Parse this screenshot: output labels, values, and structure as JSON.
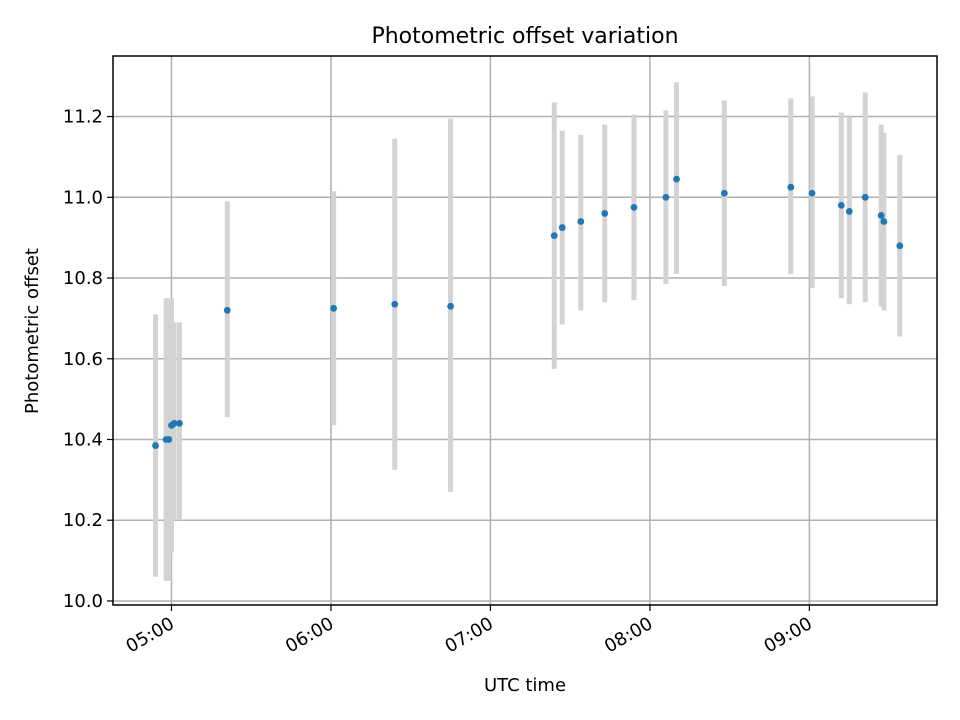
{
  "chart_data": {
    "type": "scatter",
    "title": "Photometric offset variation",
    "xlabel": "UTC time",
    "ylabel": "Photometric offset",
    "grid": true,
    "x_tick_labels": [
      "05:00",
      "06:00",
      "07:00",
      "08:00",
      "09:00"
    ],
    "x_ticks": [
      "05:00",
      "06:00",
      "07:00",
      "08:00",
      "09:00"
    ],
    "y_ticks": [
      10.0,
      10.2,
      10.4,
      10.6,
      10.8,
      11.0,
      11.2
    ],
    "y_tick_labels": [
      "10.0",
      "10.2",
      "10.4",
      "10.6",
      "10.8",
      "11.0",
      "11.2"
    ],
    "xlim": [
      "04:38",
      "09:48"
    ],
    "ylim": [
      9.99,
      11.35
    ],
    "marker_color": "#1f77b4",
    "errorbar_color": "#d3d3d3",
    "points": [
      {
        "x": "04:54",
        "y": 10.385,
        "err_low": 10.06,
        "err_high": 10.71
      },
      {
        "x": "04:58",
        "y": 10.4,
        "err_low": 10.05,
        "err_high": 10.75
      },
      {
        "x": "04:59",
        "y": 10.4,
        "err_low": 10.05,
        "err_high": 10.75
      },
      {
        "x": "05:00",
        "y": 10.435,
        "err_low": 10.12,
        "err_high": 10.75
      },
      {
        "x": "05:01",
        "y": 10.44,
        "err_low": 10.2,
        "err_high": 10.69
      },
      {
        "x": "05:03",
        "y": 10.44,
        "err_low": 10.2,
        "err_high": 10.69
      },
      {
        "x": "05:21",
        "y": 10.72,
        "err_low": 10.455,
        "err_high": 10.99
      },
      {
        "x": "06:01",
        "y": 10.725,
        "err_low": 10.435,
        "err_high": 11.015
      },
      {
        "x": "06:24",
        "y": 10.735,
        "err_low": 10.325,
        "err_high": 11.145
      },
      {
        "x": "06:45",
        "y": 10.73,
        "err_low": 10.27,
        "err_high": 11.195
      },
      {
        "x": "07:24",
        "y": 10.905,
        "err_low": 10.575,
        "err_high": 11.235
      },
      {
        "x": "07:27",
        "y": 10.925,
        "err_low": 10.685,
        "err_high": 11.165
      },
      {
        "x": "07:34",
        "y": 10.94,
        "err_low": 10.72,
        "err_high": 11.155
      },
      {
        "x": "07:43",
        "y": 10.96,
        "err_low": 10.74,
        "err_high": 11.18
      },
      {
        "x": "07:54",
        "y": 10.975,
        "err_low": 10.745,
        "err_high": 11.205
      },
      {
        "x": "08:06",
        "y": 11.0,
        "err_low": 10.785,
        "err_high": 11.215
      },
      {
        "x": "08:10",
        "y": 11.045,
        "err_low": 10.81,
        "err_high": 11.285
      },
      {
        "x": "08:28",
        "y": 11.01,
        "err_low": 10.78,
        "err_high": 11.24
      },
      {
        "x": "08:53",
        "y": 11.025,
        "err_low": 10.81,
        "err_high": 11.245
      },
      {
        "x": "09:01",
        "y": 11.01,
        "err_low": 10.775,
        "err_high": 11.25
      },
      {
        "x": "09:12",
        "y": 10.98,
        "err_low": 10.75,
        "err_high": 11.21
      },
      {
        "x": "09:15",
        "y": 10.965,
        "err_low": 10.735,
        "err_high": 11.2
      },
      {
        "x": "09:21",
        "y": 11.0,
        "err_low": 10.74,
        "err_high": 11.26
      },
      {
        "x": "09:27",
        "y": 10.955,
        "err_low": 10.73,
        "err_high": 11.18
      },
      {
        "x": "09:28",
        "y": 10.94,
        "err_low": 10.72,
        "err_high": 11.16
      },
      {
        "x": "09:34",
        "y": 10.88,
        "err_low": 10.655,
        "err_high": 11.105
      }
    ]
  }
}
